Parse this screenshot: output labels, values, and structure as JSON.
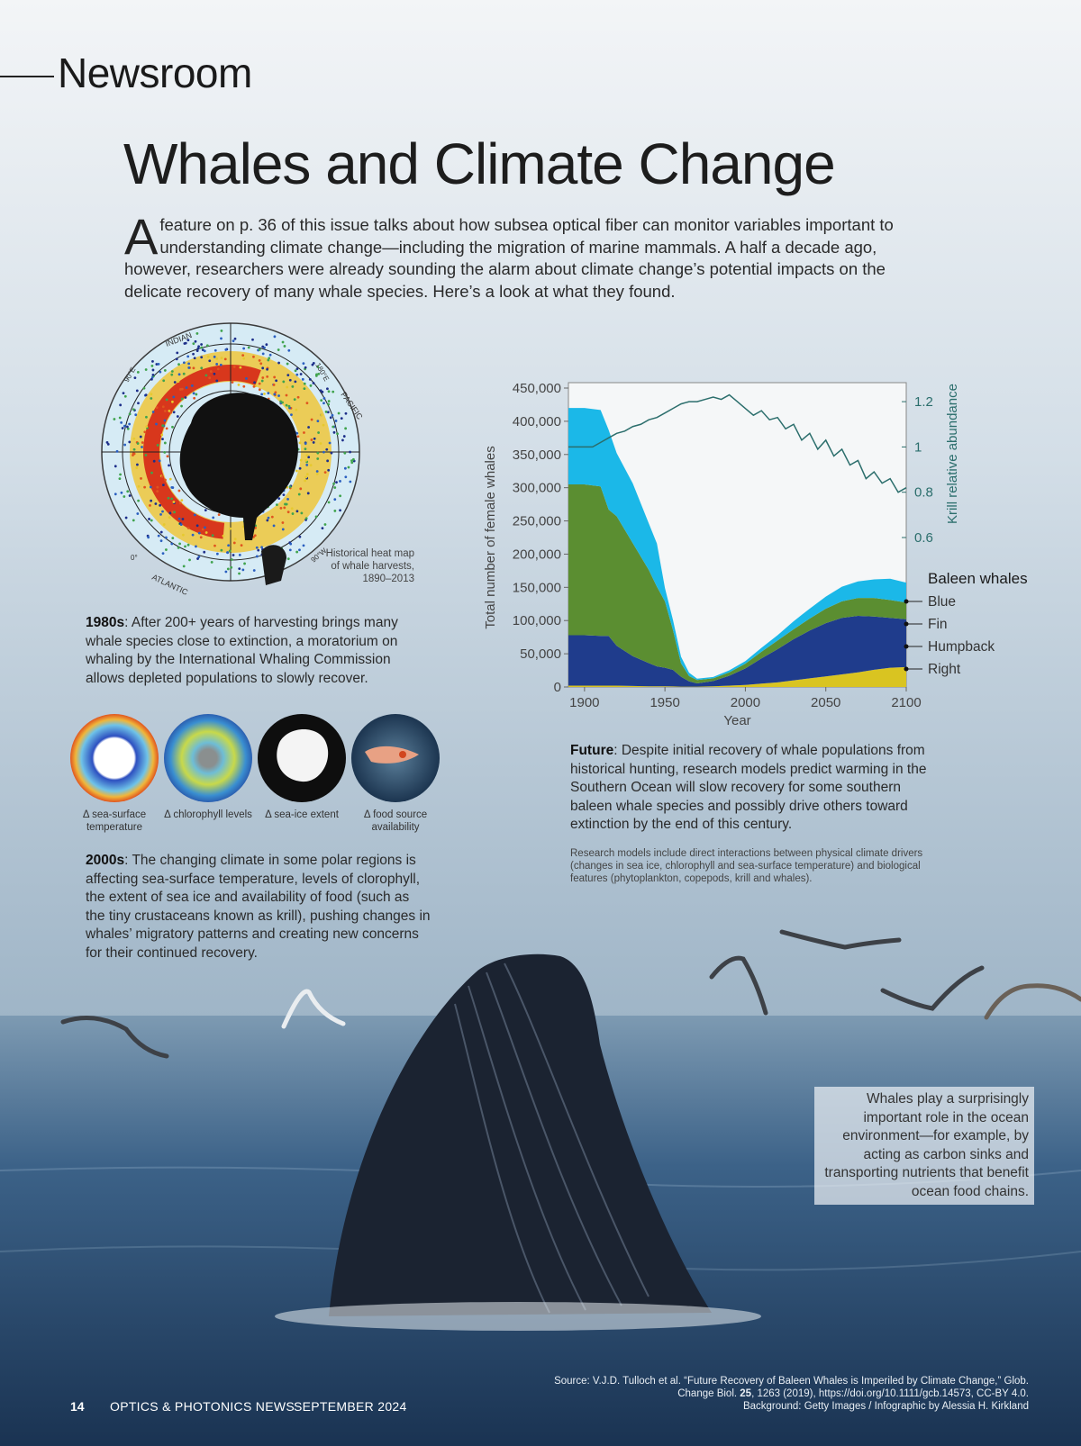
{
  "section": "Newsroom",
  "title": "Whales and Climate Change",
  "intro": {
    "dropcap": "A",
    "text": "feature on p. 36 of this issue talks about how subsea optical fiber can monitor variables important to understanding climate change—including the migration of marine mammals. A half a decade ago, however, researchers were already sounding the alarm about climate change’s potential impacts on the delicate recovery of many whale species. Here’s a look at what they found."
  },
  "heatmap": {
    "caption": "Historical heat map of whale harvests, 1890–2013",
    "labels": [
      "INDIAN",
      "PACIFIC",
      "ATLANTIC",
      "90°E",
      "180°E",
      "90°W",
      "0°"
    ]
  },
  "text_1980s": {
    "lead": "1980s",
    "text": ": After 200+ years of harvesting brings many whale species close to extinction, a moratorium on whaling by the International Whaling Commission allows depleted populations to slowly recover."
  },
  "factors": [
    "Δ sea-surface temperature",
    "Δ chlorophyll levels",
    "Δ sea-ice extent",
    "Δ food source availability"
  ],
  "text_2000s": {
    "lead": "2000s",
    "text": ": The changing climate in some polar regions is affecting sea-surface temperature, levels of clorophyll, the extent of sea ice and availability of food (such as the tiny crustaceans known as krill), pushing changes in whales’ migratory patterns and creating new concerns for their continued recovery."
  },
  "chart_data": {
    "type": "stacked-area",
    "xlabel": "Year",
    "ylabel": "Total number of female whales",
    "y2label": "Krill relative abundance",
    "legend_title": "Baleen whales",
    "x": [
      1890,
      1900,
      1910,
      1915,
      1920,
      1930,
      1940,
      1945,
      1950,
      1955,
      1960,
      1965,
      1970,
      1980,
      1990,
      2000,
      2010,
      2020,
      2030,
      2040,
      2050,
      2060,
      2070,
      2080,
      2090,
      2100
    ],
    "series": [
      {
        "name": "Right",
        "color": "#d9c421",
        "values": [
          2000,
          2000,
          2000,
          2000,
          2000,
          1500,
          1000,
          1000,
          1000,
          800,
          500,
          500,
          500,
          1000,
          2000,
          3000,
          5000,
          7000,
          10000,
          13000,
          16000,
          19000,
          22000,
          26000,
          29000,
          30000
        ]
      },
      {
        "name": "Humpback",
        "color": "#1f3c8c",
        "values": [
          76000,
          76000,
          75000,
          75000,
          60000,
          45000,
          35000,
          30000,
          28000,
          25000,
          15000,
          8000,
          5000,
          8000,
          15000,
          25000,
          38000,
          50000,
          62000,
          72000,
          80000,
          85000,
          85000,
          80000,
          75000,
          72000
        ]
      },
      {
        "name": "Fin",
        "color": "#5b8e31",
        "values": [
          227000,
          227000,
          225000,
          190000,
          195000,
          170000,
          140000,
          120000,
          100000,
          60000,
          20000,
          8000,
          5000,
          4000,
          5000,
          7000,
          10000,
          13000,
          15000,
          18000,
          22000,
          25000,
          27000,
          28000,
          27000,
          25000
        ]
      },
      {
        "name": "Blue",
        "color": "#1bb8e8",
        "values": [
          115000,
          115000,
          115000,
          120000,
          95000,
          90000,
          70000,
          65000,
          20000,
          15000,
          10000,
          5000,
          2000,
          2000,
          3000,
          4000,
          6000,
          8000,
          12000,
          15000,
          18000,
          22000,
          25000,
          28000,
          32000,
          30000
        ]
      },
      {
        "axis": "y2",
        "color": "#2b6e6c",
        "x": [
          1890,
          1895,
          1900,
          1905,
          1910,
          1915,
          1920,
          1925,
          1930,
          1935,
          1940,
          1945,
          1950,
          1955,
          1960,
          1965,
          1970,
          1975,
          1980,
          1985,
          1990,
          1995,
          2000,
          2005,
          2010,
          2015,
          2020,
          2025,
          2030,
          2035,
          2040,
          2045,
          2050,
          2055,
          2060,
          2065,
          2070,
          2075,
          2080,
          2085,
          2090,
          2095,
          2100
        ],
        "values": [
          1.0,
          1.0,
          1.0,
          1.0,
          1.02,
          1.04,
          1.06,
          1.07,
          1.09,
          1.1,
          1.12,
          1.13,
          1.15,
          1.17,
          1.19,
          1.2,
          1.2,
          1.21,
          1.22,
          1.21,
          1.23,
          1.2,
          1.17,
          1.14,
          1.16,
          1.12,
          1.13,
          1.08,
          1.1,
          1.03,
          1.06,
          0.99,
          1.03,
          0.96,
          0.99,
          0.92,
          0.94,
          0.86,
          0.89,
          0.84,
          0.86,
          0.8,
          0.82
        ]
      }
    ],
    "xlim": [
      1890,
      2100
    ],
    "xticks": [
      1900,
      1950,
      2000,
      2050,
      2100
    ],
    "ylim": [
      0,
      450000
    ],
    "yticks": [
      {
        "value": 0,
        "label": "0"
      },
      {
        "value": 50000,
        "label": "50,000"
      },
      {
        "value": 100000,
        "label": "100,000"
      },
      {
        "value": 150000,
        "label": "150,000"
      },
      {
        "value": 200000,
        "label": "200,000"
      },
      {
        "value": 250000,
        "label": "250,000"
      },
      {
        "value": 300000,
        "label": "300,000"
      },
      {
        "value": 350000,
        "label": "350,000"
      },
      {
        "value": 400000,
        "label": "400,000"
      },
      {
        "value": 450000,
        "label": "450,000"
      }
    ],
    "y2lim": [
      -0.06,
      1.26
    ],
    "y2ticks": [
      0.6,
      0.8,
      1,
      1.2
    ]
  },
  "future": {
    "lead": "Future",
    "text": ": Despite initial recovery of whale populations from historical hunting, research models predict warming in the Southern Ocean will slow recovery for some southern baleen whale species and possibly drive others toward extinction by the end of this century."
  },
  "note": "Research models include direct interactions between physical climate drivers (changes in sea ice, chlorophyll and sea-surface temperature) and biological features (phytoplankton, copepods, krill and whales).",
  "callout": "Whales play a surprisingly important role in the ocean environment—for example, by acting as carbon sinks and transporting nutrients that benefit ocean food chains.",
  "footer": {
    "page": "14",
    "publication": "OPTICS & PHOTONICS NEWS",
    "issue": "SEPTEMBER 2024",
    "source_1": "Source: V.J.D. Tulloch et al. “Future Recovery of Baleen Whales is Imperiled by Climate Change,” Glob. Change Biol. ",
    "volume": "25",
    "source_2": ", 1263 (2019), https://doi.org/10.1111/gcb.14573, CC-BY 4.0.",
    "credit": "Background: Getty Images / Infographic by Alessia H. Kirkland"
  }
}
